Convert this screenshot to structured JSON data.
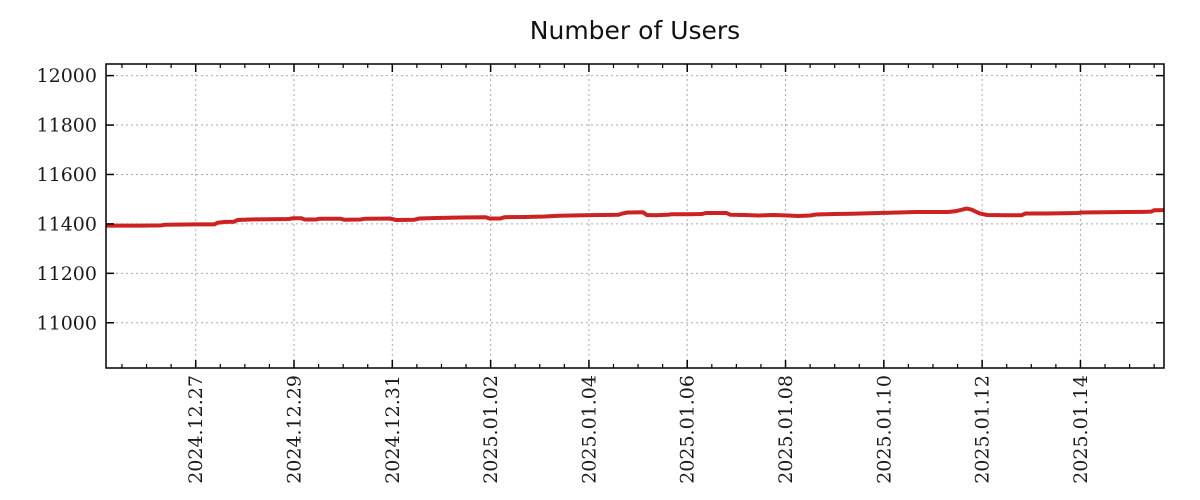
{
  "chart_data": {
    "type": "line",
    "title": "Number of Users",
    "legend": null,
    "grid": true,
    "x_axis": {
      "day_zero_date": "2024.12.25",
      "range_days": [
        0.175,
        21.7
      ],
      "tick_days": [
        2,
        4,
        6,
        8,
        10,
        12,
        14,
        16,
        18,
        20
      ],
      "tick_labels": [
        "2024.12.27",
        "2024.12.29",
        "2024.12.31",
        "2025.01.02",
        "2025.01.04",
        "2025.01.06",
        "2025.01.08",
        "2025.01.10",
        "2025.01.12",
        "2025.01.14"
      ],
      "minor_tick_step_days": 0.5
    },
    "y_axis": {
      "range": [
        10817,
        12047
      ],
      "tick_values": [
        11000,
        11200,
        11400,
        11600,
        11800,
        12000
      ],
      "tick_labels": [
        "11000",
        "11200",
        "11400",
        "11600",
        "11800",
        "12000"
      ]
    },
    "series": [
      {
        "color": "#cc2222",
        "points": [
          [
            0.18,
            11393
          ],
          [
            0.9,
            11393
          ],
          [
            1.3,
            11394
          ],
          [
            1.38,
            11397
          ],
          [
            2.0,
            11398
          ],
          [
            2.38,
            11398
          ],
          [
            2.45,
            11405
          ],
          [
            2.6,
            11408
          ],
          [
            2.78,
            11409
          ],
          [
            2.85,
            11416
          ],
          [
            3.1,
            11418
          ],
          [
            3.5,
            11419
          ],
          [
            3.9,
            11420
          ],
          [
            3.98,
            11423
          ],
          [
            4.15,
            11423
          ],
          [
            4.22,
            11418
          ],
          [
            4.45,
            11418
          ],
          [
            4.52,
            11421
          ],
          [
            4.95,
            11421
          ],
          [
            5.02,
            11417
          ],
          [
            5.35,
            11418
          ],
          [
            5.45,
            11421
          ],
          [
            5.95,
            11422
          ],
          [
            6.08,
            11416
          ],
          [
            6.45,
            11417
          ],
          [
            6.55,
            11422
          ],
          [
            6.9,
            11424
          ],
          [
            7.4,
            11426
          ],
          [
            7.9,
            11427
          ],
          [
            7.98,
            11422
          ],
          [
            8.2,
            11422
          ],
          [
            8.28,
            11427
          ],
          [
            8.7,
            11428
          ],
          [
            9.1,
            11430
          ],
          [
            9.4,
            11433
          ],
          [
            9.9,
            11435
          ],
          [
            10.3,
            11436
          ],
          [
            10.6,
            11437
          ],
          [
            10.68,
            11442
          ],
          [
            10.78,
            11446
          ],
          [
            11.1,
            11447
          ],
          [
            11.18,
            11436
          ],
          [
            11.35,
            11435
          ],
          [
            11.6,
            11437
          ],
          [
            11.68,
            11439
          ],
          [
            12.05,
            11439
          ],
          [
            12.3,
            11440
          ],
          [
            12.38,
            11444
          ],
          [
            12.8,
            11444
          ],
          [
            12.88,
            11437
          ],
          [
            13.15,
            11436
          ],
          [
            13.45,
            11434
          ],
          [
            13.75,
            11436
          ],
          [
            14.05,
            11434
          ],
          [
            14.25,
            11432
          ],
          [
            14.5,
            11434
          ],
          [
            14.62,
            11438
          ],
          [
            15.0,
            11440
          ],
          [
            15.35,
            11441
          ],
          [
            15.9,
            11444
          ],
          [
            16.3,
            11446
          ],
          [
            16.65,
            11448
          ],
          [
            17.3,
            11448
          ],
          [
            17.45,
            11451
          ],
          [
            17.6,
            11458
          ],
          [
            17.68,
            11462
          ],
          [
            17.78,
            11458
          ],
          [
            17.95,
            11442
          ],
          [
            18.1,
            11436
          ],
          [
            18.45,
            11435
          ],
          [
            18.8,
            11435
          ],
          [
            18.88,
            11442
          ],
          [
            19.3,
            11442
          ],
          [
            19.65,
            11443
          ],
          [
            19.95,
            11444
          ],
          [
            20.02,
            11446
          ],
          [
            20.5,
            11447
          ],
          [
            20.95,
            11448
          ],
          [
            21.35,
            11449
          ],
          [
            21.44,
            11450
          ],
          [
            21.5,
            11455
          ],
          [
            21.7,
            11456
          ]
        ]
      }
    ],
    "colors": {
      "line": "#cc2222",
      "grid": "#aaaaaa",
      "axis": "#000000",
      "background": "#ffffff",
      "title_text": "#111111"
    }
  }
}
